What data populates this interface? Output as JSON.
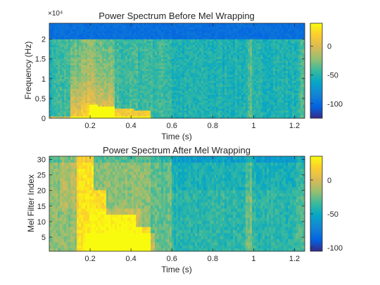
{
  "chart_data": [
    {
      "type": "heatmap",
      "title": "Power Spectrum Before Mel Wrapping",
      "xlabel": "Time (s)",
      "ylabel": "Frequency (Hz)",
      "y_exponent_label": "×10⁴",
      "xlim": [
        0,
        1.25
      ],
      "ylim": [
        0,
        2.4
      ],
      "xticks": [
        0.2,
        0.4,
        0.6,
        0.8,
        1,
        1.2
      ],
      "xtick_labels": [
        "0.2",
        "0.4",
        "0.6",
        "0.8",
        "1",
        "1.2"
      ],
      "yticks": [
        0,
        0.5,
        1,
        1.5,
        2
      ],
      "ytick_labels": [
        "0",
        "0.5",
        "1",
        "1.5",
        "2"
      ],
      "colorbar": {
        "ticks": [
          0,
          -50,
          -100
        ],
        "tick_labels": [
          "0",
          "-50",
          "-100"
        ],
        "range": [
          -125,
          40
        ],
        "colormap": "parula"
      },
      "description_values": {
        "energy_band_top": 2.0,
        "above_band_level_db": -90,
        "background_level_db": -55
      }
    },
    {
      "type": "heatmap",
      "title": "Power Spectrum After Mel Wrapping",
      "xlabel": "Time (s)",
      "ylabel": "Mel Filter Index",
      "xlim": [
        0,
        1.25
      ],
      "ylim": [
        0.5,
        31
      ],
      "xticks": [
        0.2,
        0.4,
        0.6,
        0.8,
        1,
        1.2
      ],
      "xtick_labels": [
        "0.2",
        "0.4",
        "0.6",
        "0.8",
        "1",
        "1.2"
      ],
      "yticks": [
        5,
        10,
        15,
        20,
        25,
        30
      ],
      "ytick_labels": [
        "5",
        "10",
        "15",
        "20",
        "25",
        "30"
      ],
      "colorbar": {
        "ticks": [
          0,
          -50,
          -100
        ],
        "tick_labels": [
          "0",
          "-50",
          "-100"
        ],
        "range": [
          -105,
          35
        ],
        "colormap": "parula"
      }
    }
  ],
  "colors": {
    "parula": [
      "#352a87",
      "#0363e1",
      "#1485d4",
      "#06a7c6",
      "#38b99e",
      "#92bf73",
      "#d9ba56",
      "#fcce2e",
      "#f9fb0e"
    ],
    "axis": "#262626"
  }
}
